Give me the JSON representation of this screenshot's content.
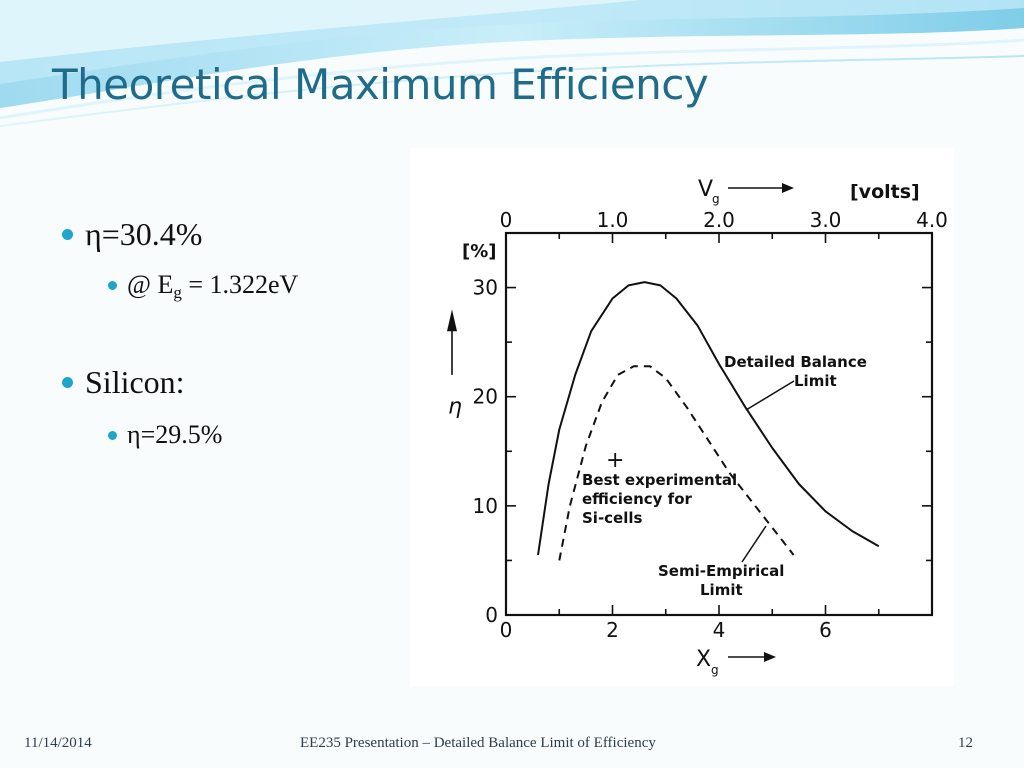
{
  "slide": {
    "title": "Theoretical Maximum Efficiency",
    "bullets": {
      "b1": "η=30.4%",
      "b1_sub": {
        "prefix": "@ E",
        "subscript": "g",
        "suffix": " = 1.322eV"
      },
      "b2": "Silicon:",
      "b2_sub": "η=29.5%"
    },
    "footer": {
      "date": "11/14/2014",
      "center": "EE235 Presentation – Detailed Balance Limit of Efficiency",
      "page": "12"
    }
  },
  "chart_data": {
    "type": "line",
    "top_axis": {
      "label": "V",
      "label_subscript": "g",
      "unit": "[volts]",
      "ticks": [
        "0",
        "1.0",
        "2.0",
        "3.0",
        "4.0"
      ],
      "range": [
        0,
        4.0
      ]
    },
    "bottom_axis": {
      "label": "X",
      "label_subscript": "g",
      "ticks": [
        "0",
        "2",
        "4",
        "6"
      ],
      "range": [
        0,
        8
      ]
    },
    "y_axis": {
      "label": "η",
      "unit": "[%]",
      "ticks": [
        "0",
        "10",
        "20",
        "30"
      ],
      "range": [
        0,
        35
      ]
    },
    "series": [
      {
        "name": "Detailed Balance Limit",
        "style": "solid",
        "points": [
          [
            0.6,
            5.5
          ],
          [
            0.8,
            12
          ],
          [
            1.0,
            17
          ],
          [
            1.3,
            22
          ],
          [
            1.6,
            26
          ],
          [
            2.0,
            29
          ],
          [
            2.3,
            30.2
          ],
          [
            2.6,
            30.5
          ],
          [
            2.9,
            30.2
          ],
          [
            3.2,
            29
          ],
          [
            3.6,
            26.5
          ],
          [
            4.0,
            23
          ],
          [
            4.5,
            19
          ],
          [
            5.0,
            15.3
          ],
          [
            5.5,
            12
          ],
          [
            6.0,
            9.5
          ],
          [
            6.5,
            7.7
          ],
          [
            7.0,
            6.3
          ]
        ]
      },
      {
        "name": "Semi-Empirical Limit",
        "style": "dashed",
        "points": [
          [
            1.0,
            5
          ],
          [
            1.2,
            10
          ],
          [
            1.5,
            15.5
          ],
          [
            1.8,
            19.5
          ],
          [
            2.1,
            22
          ],
          [
            2.4,
            22.8
          ],
          [
            2.7,
            22.8
          ],
          [
            3.0,
            21.7
          ],
          [
            3.4,
            19
          ],
          [
            3.8,
            16
          ],
          [
            4.2,
            13
          ],
          [
            4.6,
            10.5
          ],
          [
            5.0,
            8
          ],
          [
            5.4,
            5.5
          ]
        ]
      }
    ],
    "points": [
      {
        "label": "Best experimental efficiency for Si-cells",
        "marker": "+",
        "x": 2.05,
        "y": 14.3
      }
    ],
    "annotations": {
      "detailed_balance": {
        "line1": "Detailed Balance",
        "line2": "Limit"
      },
      "experimental": {
        "line1": "Best experimental",
        "line2": "efficiency for",
        "line3": "Si-cells"
      },
      "semi_empirical": {
        "line1": "Semi-Empirical",
        "line2": "Limit"
      }
    }
  },
  "colors": {
    "title": "#1f6b8a",
    "bullet": "#1ea5c8",
    "wave": "#8fd3ea"
  }
}
